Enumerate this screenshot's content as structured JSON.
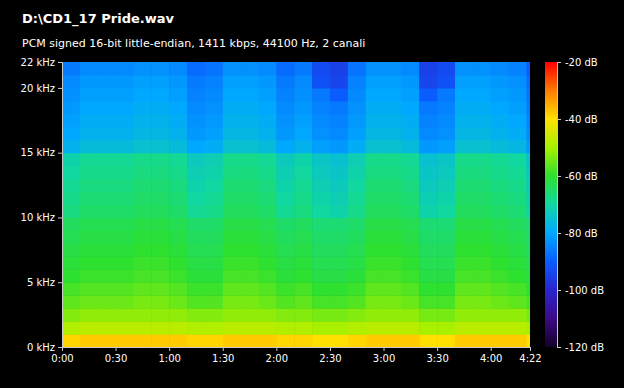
{
  "chart_data": {
    "type": "heatmap",
    "title": "D:\\CD1_17 Pride.wav",
    "subtitle": "PCM signed 16-bit little-endian, 1411 kbps, 44100 Hz, 2 canali",
    "xlim": [
      0,
      262
    ],
    "ylim": [
      0,
      22
    ],
    "xticks": [
      {
        "value": 0,
        "label": "0:00"
      },
      {
        "value": 30,
        "label": "0:30"
      },
      {
        "value": 60,
        "label": "1:00"
      },
      {
        "value": 90,
        "label": "1:30"
      },
      {
        "value": 120,
        "label": "2:00"
      },
      {
        "value": 150,
        "label": "2:30"
      },
      {
        "value": 180,
        "label": "3:00"
      },
      {
        "value": 210,
        "label": "3:30"
      },
      {
        "value": 240,
        "label": "4:00"
      },
      {
        "value": 262,
        "label": "4:22"
      }
    ],
    "yticks": [
      {
        "value": 0,
        "label": "0 kHz"
      },
      {
        "value": 5,
        "label": "5 kHz"
      },
      {
        "value": 10,
        "label": "10 kHz"
      },
      {
        "value": 15,
        "label": "15 kHz"
      },
      {
        "value": 20,
        "label": "20 kHz"
      },
      {
        "value": 22,
        "label": "22 kHz"
      }
    ],
    "x_bins": [
      0,
      10,
      20,
      30,
      40,
      50,
      60,
      70,
      80,
      90,
      100,
      110,
      120,
      130,
      140,
      150,
      160,
      170,
      180,
      190,
      200,
      210,
      220,
      230,
      240,
      250,
      260,
      262
    ],
    "y_bins": [
      0,
      1,
      2,
      3,
      4,
      5,
      6,
      7,
      8,
      9,
      10,
      11,
      12,
      13,
      14,
      15,
      16,
      17,
      18,
      19,
      20,
      21,
      22
    ],
    "cells": [
      [
        -39,
        -38,
        -38,
        -38,
        -38,
        -38,
        -38,
        -39,
        -39,
        -38,
        -38,
        -38,
        -39,
        -39,
        -40,
        -40,
        -39,
        -38,
        -38,
        -38,
        -40,
        -40,
        -38,
        -38,
        -38,
        -38,
        -40
      ],
      [
        -49,
        -48,
        -48,
        -48,
        -48,
        -48,
        -48,
        -49,
        -49,
        -48,
        -48,
        -48,
        -49,
        -49,
        -50,
        -50,
        -49,
        -48,
        -48,
        -48,
        -50,
        -50,
        -48,
        -48,
        -48,
        -48,
        -50
      ],
      [
        -53,
        -52,
        -52,
        -52,
        -52,
        -52,
        -52,
        -53,
        -53,
        -52,
        -52,
        -52,
        -53,
        -53,
        -54,
        -54,
        -53,
        -52,
        -52,
        -52,
        -54,
        -54,
        -52,
        -52,
        -52,
        -52,
        -54
      ],
      [
        -56,
        -55,
        -55,
        -55,
        -54,
        -54,
        -55,
        -57,
        -57,
        -54,
        -54,
        -55,
        -57,
        -56,
        -58,
        -58,
        -57,
        -54,
        -54,
        -55,
        -58,
        -58,
        -54,
        -54,
        -55,
        -56,
        -58
      ],
      [
        -58,
        -57,
        -57,
        -57,
        -56,
        -56,
        -57,
        -59,
        -59,
        -56,
        -56,
        -57,
        -59,
        -58,
        -60,
        -60,
        -59,
        -56,
        -56,
        -57,
        -60,
        -60,
        -56,
        -56,
        -57,
        -58,
        -60
      ],
      [
        -60,
        -59,
        -59,
        -59,
        -58,
        -58,
        -59,
        -61,
        -61,
        -58,
        -58,
        -59,
        -61,
        -60,
        -62,
        -62,
        -61,
        -58,
        -58,
        -59,
        -62,
        -62,
        -58,
        -58,
        -59,
        -60,
        -62
      ],
      [
        -61,
        -60,
        -60,
        -60,
        -59,
        -59,
        -60,
        -62,
        -62,
        -59,
        -59,
        -60,
        -62,
        -61,
        -63,
        -63,
        -62,
        -59,
        -59,
        -60,
        -63,
        -63,
        -59,
        -59,
        -60,
        -61,
        -63
      ],
      [
        -62,
        -61,
        -61,
        -61,
        -60,
        -60,
        -61,
        -63,
        -63,
        -60,
        -60,
        -61,
        -63,
        -62,
        -64,
        -64,
        -63,
        -60,
        -60,
        -61,
        -64,
        -64,
        -60,
        -60,
        -61,
        -62,
        -64
      ],
      [
        -63,
        -62,
        -62,
        -62,
        -61,
        -61,
        -62,
        -64,
        -64,
        -61,
        -61,
        -62,
        -64,
        -63,
        -65,
        -65,
        -64,
        -61,
        -61,
        -62,
        -65,
        -65,
        -61,
        -61,
        -62,
        -63,
        -65
      ],
      [
        -64,
        -63,
        -63,
        -63,
        -62,
        -62,
        -63,
        -65,
        -65,
        -62,
        -62,
        -63,
        -65,
        -64,
        -66,
        -66,
        -65,
        -62,
        -62,
        -63,
        -66,
        -66,
        -62,
        -62,
        -63,
        -64,
        -66
      ],
      [
        -67,
        -65,
        -65,
        -65,
        -64,
        -64,
        -65,
        -69,
        -68,
        -64,
        -64,
        -65,
        -69,
        -67,
        -70,
        -71,
        -68,
        -64,
        -64,
        -65,
        -71,
        -70,
        -64,
        -64,
        -65,
        -66,
        -71
      ],
      [
        -68,
        -66,
        -66,
        -66,
        -65,
        -65,
        -66,
        -70,
        -69,
        -65,
        -65,
        -66,
        -70,
        -68,
        -71,
        -72,
        -69,
        -65,
        -65,
        -66,
        -72,
        -71,
        -65,
        -65,
        -66,
        -67,
        -72
      ],
      [
        -69,
        -67,
        -67,
        -67,
        -66,
        -66,
        -67,
        -71,
        -70,
        -66,
        -66,
        -67,
        -71,
        -69,
        -72,
        -73,
        -70,
        -66,
        -66,
        -67,
        -73,
        -72,
        -66,
        -66,
        -67,
        -68,
        -73
      ],
      [
        -70,
        -68,
        -68,
        -68,
        -67,
        -67,
        -68,
        -72,
        -71,
        -67,
        -67,
        -68,
        -72,
        -70,
        -73,
        -74,
        -71,
        -67,
        -67,
        -68,
        -74,
        -73,
        -67,
        -67,
        -68,
        -69,
        -74
      ],
      [
        -71,
        -69,
        -69,
        -69,
        -68,
        -68,
        -69,
        -73,
        -72,
        -68,
        -68,
        -69,
        -73,
        -71,
        -74,
        -75,
        -72,
        -68,
        -68,
        -69,
        -75,
        -74,
        -68,
        -68,
        -69,
        -70,
        -75
      ],
      [
        -78,
        -76,
        -76,
        -76,
        -75,
        -75,
        -76,
        -80,
        -79,
        -75,
        -75,
        -76,
        -80,
        -78,
        -81,
        -82,
        -79,
        -75,
        -75,
        -76,
        -82,
        -81,
        -75,
        -75,
        -76,
        -77,
        -82
      ],
      [
        -80,
        -78,
        -78,
        -78,
        -77,
        -77,
        -78,
        -82,
        -81,
        -77,
        -77,
        -78,
        -82,
        -80,
        -83,
        -84,
        -81,
        -77,
        -77,
        -78,
        -84,
        -83,
        -77,
        -77,
        -78,
        -79,
        -84
      ],
      [
        -81,
        -79,
        -79,
        -79,
        -78,
        -78,
        -79,
        -83,
        -82,
        -78,
        -78,
        -79,
        -83,
        -81,
        -84,
        -85,
        -82,
        -78,
        -78,
        -79,
        -85,
        -84,
        -78,
        -78,
        -79,
        -80,
        -85
      ],
      [
        -82,
        -80,
        -80,
        -80,
        -79,
        -79,
        -80,
        -84,
        -83,
        -79,
        -79,
        -80,
        -84,
        -82,
        -85,
        -86,
        -83,
        -79,
        -79,
        -80,
        -86,
        -85,
        -79,
        -79,
        -80,
        -81,
        -86
      ],
      [
        -83,
        -81,
        -81,
        -81,
        -80,
        -80,
        -81,
        -85,
        -84,
        -80,
        -80,
        -81,
        -85,
        -83,
        -86,
        -90,
        -84,
        -80,
        -80,
        -81,
        -90,
        -86,
        -80,
        -80,
        -81,
        -82,
        -87
      ],
      [
        -84,
        -82,
        -82,
        -82,
        -81,
        -81,
        -82,
        -86,
        -85,
        -81,
        -81,
        -82,
        -86,
        -84,
        -92,
        -94,
        -85,
        -81,
        -81,
        -82,
        -94,
        -92,
        -81,
        -81,
        -82,
        -83,
        -88
      ],
      [
        -86,
        -84,
        -84,
        -84,
        -83,
        -83,
        -84,
        -88,
        -87,
        -83,
        -83,
        -84,
        -88,
        -86,
        -93,
        -95,
        -87,
        -83,
        -83,
        -84,
        -95,
        -93,
        -83,
        -83,
        -84,
        -85,
        -90
      ]
    ],
    "color_range": [
      -120,
      -20
    ],
    "color_ticks": [
      {
        "value": -20,
        "label": "-20 dB"
      },
      {
        "value": -40,
        "label": "-40 dB"
      },
      {
        "value": -60,
        "label": "-60 dB"
      },
      {
        "value": -80,
        "label": "-80 dB"
      },
      {
        "value": -100,
        "label": "-100 dB"
      },
      {
        "value": -120,
        "label": "-120 dB"
      }
    ]
  }
}
